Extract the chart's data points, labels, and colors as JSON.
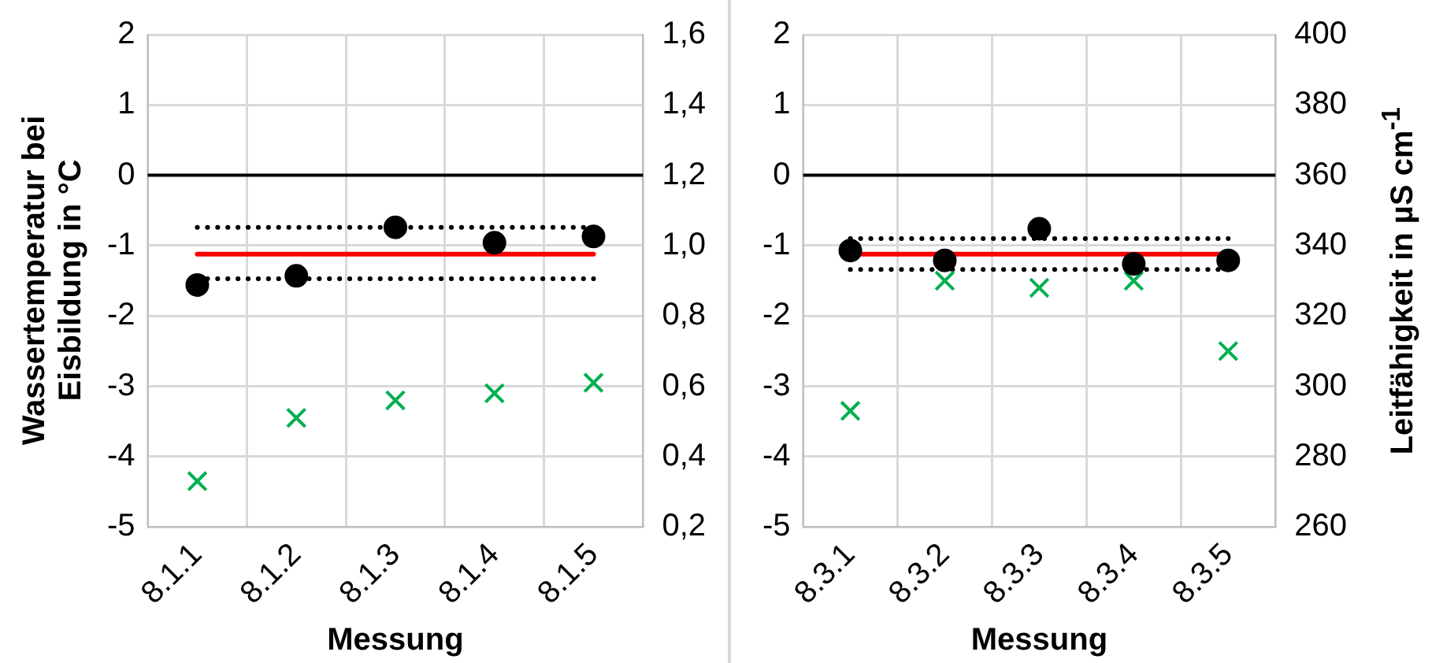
{
  "chart_data": [
    {
      "type": "scatter",
      "categories": [
        "8.1.1",
        "8.1.2",
        "8.1.3",
        "8.1.4",
        "8.1.5"
      ],
      "xlabel": "Messung",
      "ylabel": "Wassertemperatur bei Eisbildung in °C",
      "ylim": [
        -5,
        2
      ],
      "yticks": [
        -5,
        -4,
        -3,
        -2,
        -1,
        0,
        1,
        2
      ],
      "y2lim": [
        0.2,
        1.6
      ],
      "y2ticks": [
        {
          "value": 0.2,
          "label": "0,2"
        },
        {
          "value": 0.4,
          "label": "0,4"
        },
        {
          "value": 0.6,
          "label": "0,6"
        },
        {
          "value": 0.8,
          "label": "0,8"
        },
        {
          "value": 1.0,
          "label": "1,0"
        },
        {
          "value": 1.2,
          "label": "1,2"
        },
        {
          "value": 1.4,
          "label": "1,4"
        },
        {
          "value": 1.6,
          "label": "1,6"
        }
      ],
      "grid": true,
      "legend": false,
      "ref_lines": [
        {
          "axis": "y",
          "value": 0,
          "color": "#000000"
        }
      ],
      "series": [
        {
          "type": "line",
          "color": "#ff0000",
          "marker": "none",
          "values": [
            -1.12,
            -1.12,
            -1.12,
            -1.12,
            -1.12
          ]
        },
        {
          "type": "line",
          "color": "#000000",
          "marker": "none",
          "line_style": "dotted",
          "values": [
            -0.74,
            -0.74,
            -0.74,
            -0.74,
            -0.74
          ]
        },
        {
          "type": "line",
          "color": "#000000",
          "marker": "none",
          "line_style": "dotted",
          "values": [
            -1.47,
            -1.47,
            -1.47,
            -1.47,
            -1.47
          ]
        },
        {
          "type": "scatter",
          "color": "#000000",
          "marker": "circle",
          "values": [
            -1.56,
            -1.43,
            -0.74,
            -0.96,
            -0.87
          ]
        },
        {
          "type": "scatter",
          "color": "#00b050",
          "marker": "cross",
          "axis": "y2",
          "values": [
            0.33,
            0.51,
            0.56,
            0.58,
            0.61
          ]
        }
      ]
    },
    {
      "type": "scatter",
      "categories": [
        "8.3.1",
        "8.3.2",
        "8.3.3",
        "8.3.4",
        "8.3.5"
      ],
      "xlabel": "Messung",
      "y2label": "Leitfähigkeit in µS cm$^{-1}$",
      "ylim": [
        -5,
        2
      ],
      "yticks": [
        -5,
        -4,
        -3,
        -2,
        -1,
        0,
        1,
        2
      ],
      "y2lim": [
        260,
        400
      ],
      "y2ticks": [
        260,
        280,
        300,
        320,
        340,
        360,
        380,
        400
      ],
      "grid": true,
      "legend": false,
      "ref_lines": [
        {
          "axis": "y",
          "value": 0,
          "color": "#000000"
        }
      ],
      "series": [
        {
          "type": "line",
          "color": "#ff0000",
          "marker": "none",
          "values": [
            -1.12,
            -1.12,
            -1.12,
            -1.12,
            -1.12
          ]
        },
        {
          "type": "line",
          "color": "#000000",
          "marker": "none",
          "line_style": "dotted",
          "values": [
            -0.9,
            -0.9,
            -0.9,
            -0.9,
            -0.9
          ]
        },
        {
          "type": "line",
          "color": "#000000",
          "marker": "none",
          "line_style": "dotted",
          "values": [
            -1.34,
            -1.34,
            -1.34,
            -1.34,
            -1.34
          ]
        },
        {
          "type": "scatter",
          "color": "#000000",
          "marker": "circle",
          "values": [
            -1.07,
            -1.21,
            -0.76,
            -1.26,
            -1.21
          ]
        },
        {
          "type": "scatter",
          "color": "#00b050",
          "marker": "cross",
          "axis": "y2",
          "values": [
            293,
            330,
            328,
            330,
            310
          ]
        }
      ]
    }
  ]
}
